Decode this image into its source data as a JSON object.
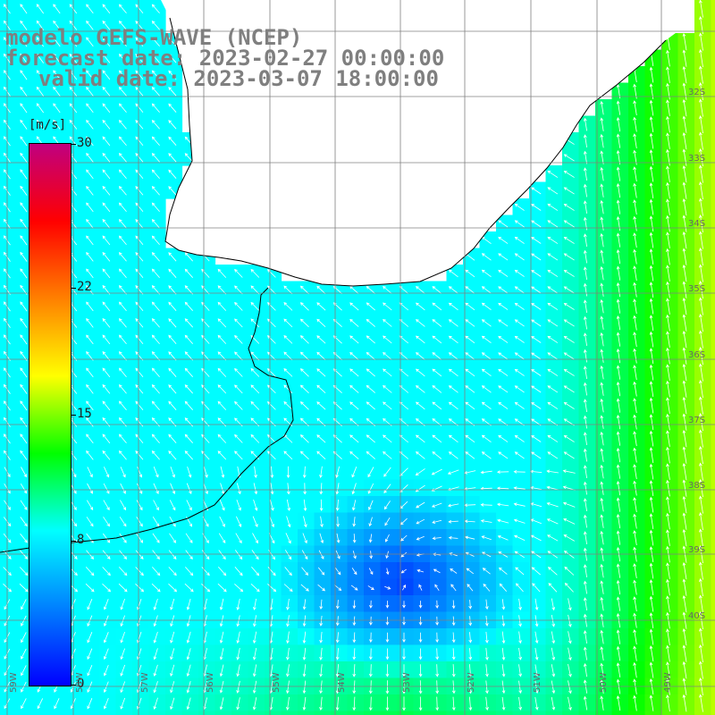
{
  "title": {
    "model": "modelo GEFS-WAVE (NCEP)",
    "forecast": "forecast date: 2023-02-27 00:00:00",
    "valid": "valid date: 2023-03-07 18:00:00"
  },
  "colorbar": {
    "unit": "[m/s]",
    "min": 0,
    "max": 30,
    "ticks": [
      "0",
      "8",
      "15",
      "22",
      "30"
    ],
    "colors": [
      "#0000ff",
      "#0080ff",
      "#00ffff",
      "#00ff00",
      "#ffff00",
      "#ff8000",
      "#ff0000",
      "#c00080"
    ]
  },
  "axes": {
    "lon_labels": [
      "59W",
      "58W",
      "57W",
      "56W",
      "55W",
      "54W",
      "53W",
      "52W",
      "51W",
      "50W",
      "49W"
    ],
    "lat_labels": [
      "32S",
      "33S",
      "34S",
      "35S",
      "36S",
      "37S",
      "38S",
      "39S",
      "40S"
    ]
  },
  "map_colors": {
    "land": "#ffffff",
    "coast": "#000000",
    "grid": "#808080",
    "arrow": "#ffffff"
  }
}
